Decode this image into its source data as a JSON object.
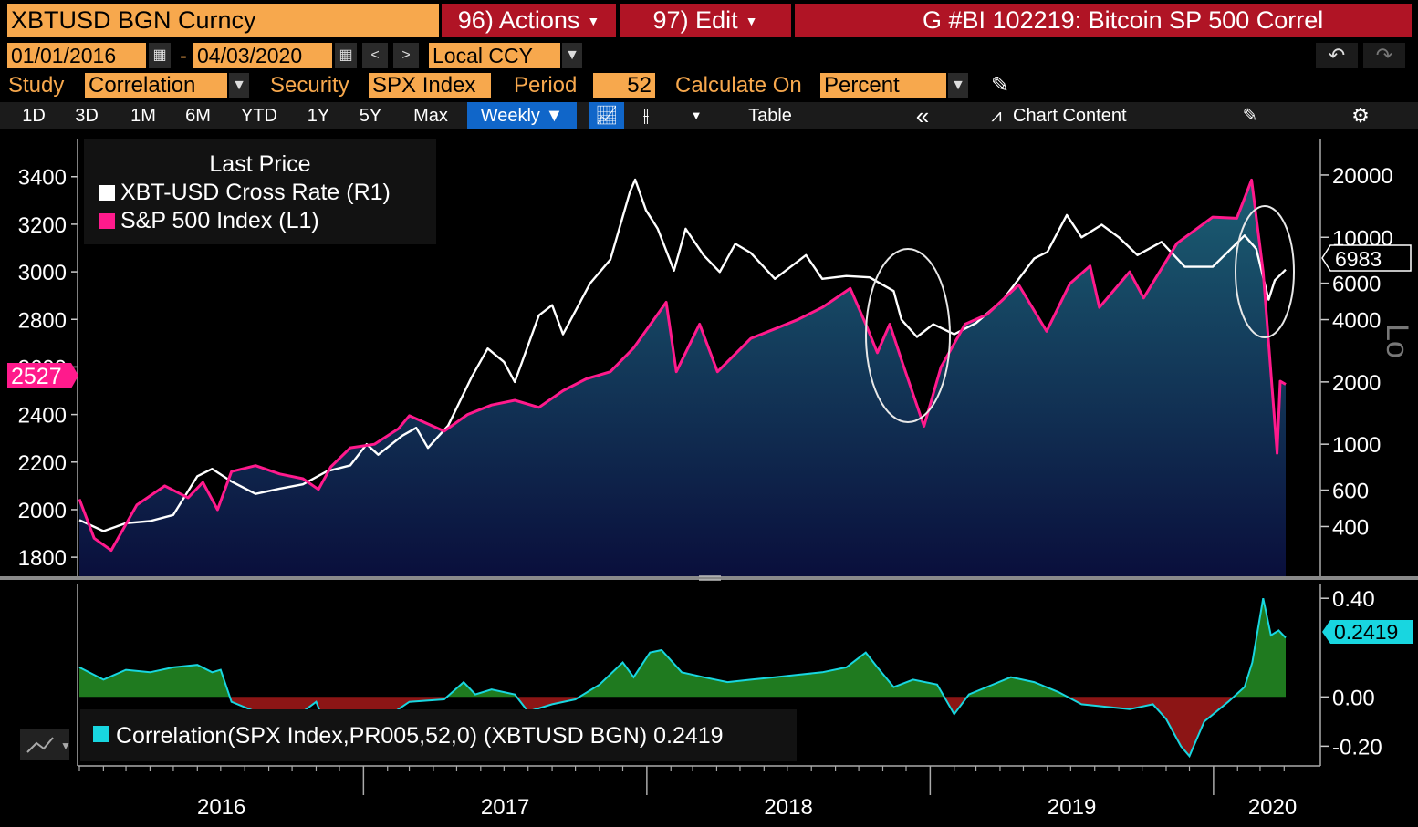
{
  "title_bar": {
    "ticker": "XBTUSD BGN Curncy",
    "actions": "96) Actions",
    "edit": "97) Edit",
    "graph_title": "G #BI 102219: Bitcoin SP 500 Correl"
  },
  "date_bar": {
    "start_date": "01/01/2016",
    "dash": "-",
    "end_date": "04/03/2020",
    "prev": "<",
    "next": ">",
    "currency": "Local CCY",
    "undo": "↶",
    "redo": "↷"
  },
  "study_bar": {
    "study_label": "Study",
    "study_value": "Correlation",
    "security_label": "Security",
    "security_value": "SPX Index",
    "period_label": "Period",
    "period_value": "52",
    "calc_label": "Calculate On",
    "calc_value": "Percent"
  },
  "timeframe_bar": {
    "buttons": [
      "1D",
      "3D",
      "1M",
      "6M",
      "YTD",
      "1Y",
      "5Y",
      "Max"
    ],
    "selected": "Weekly ▼",
    "table": "Table",
    "collapse": "«",
    "chart_content": "Chart Content"
  },
  "colors": {
    "xbt": "#ffffff",
    "spx": "#ff1a8c",
    "corr": "#18d6e0",
    "corr_pos_fill": "#1f7a1f",
    "corr_neg_fill": "#8c1515",
    "accent": "#f7a84d",
    "header_red": "#b01425",
    "area_top": "#1b5e73",
    "area_bottom": "#0a0f3c"
  },
  "chart_data": [
    {
      "type": "line",
      "legend_title": "Last Price",
      "legend_placement": "top-left",
      "x_labels": [
        "2016",
        "2017",
        "2018",
        "2019",
        "2020"
      ],
      "left_axis": {
        "ylim": [
          1720,
          3560
        ],
        "ticks": [
          1800,
          2000,
          2200,
          2400,
          2600,
          2800,
          3000,
          3200,
          3400
        ]
      },
      "right_axis": {
        "scale": "log",
        "ylim": [
          230,
          30000
        ],
        "ticks": [
          400,
          600,
          1000,
          2000,
          4000,
          6000,
          10000,
          20000
        ],
        "side_label": "Lo"
      },
      "series": [
        {
          "name": "XBT-USD Cross Rate  (R1)",
          "axis": "right",
          "last_value": "6983",
          "points": [
            [
              "2016-01-01",
              430
            ],
            [
              "2016-02-01",
              380
            ],
            [
              "2016-03-01",
              415
            ],
            [
              "2016-04-01",
              425
            ],
            [
              "2016-05-01",
              455
            ],
            [
              "2016-06-01",
              700
            ],
            [
              "2016-06-20",
              760
            ],
            [
              "2016-07-15",
              660
            ],
            [
              "2016-08-15",
              575
            ],
            [
              "2016-09-15",
              610
            ],
            [
              "2016-10-15",
              640
            ],
            [
              "2016-11-15",
              740
            ],
            [
              "2016-12-15",
              790
            ],
            [
              "2017-01-05",
              1000
            ],
            [
              "2017-01-20",
              890
            ],
            [
              "2017-02-20",
              1100
            ],
            [
              "2017-03-10",
              1200
            ],
            [
              "2017-03-25",
              960
            ],
            [
              "2017-04-20",
              1230
            ],
            [
              "2017-05-20",
              2100
            ],
            [
              "2017-06-10",
              2900
            ],
            [
              "2017-07-01",
              2500
            ],
            [
              "2017-07-15",
              2000
            ],
            [
              "2017-08-15",
              4200
            ],
            [
              "2017-09-01",
              4700
            ],
            [
              "2017-09-15",
              3400
            ],
            [
              "2017-10-20",
              6000
            ],
            [
              "2017-11-15",
              7800
            ],
            [
              "2017-12-10",
              16500
            ],
            [
              "2017-12-17",
              19000
            ],
            [
              "2017-12-31",
              13500
            ],
            [
              "2018-01-15",
              11000
            ],
            [
              "2018-02-05",
              6900
            ],
            [
              "2018-02-20",
              11000
            ],
            [
              "2018-03-15",
              8200
            ],
            [
              "2018-04-05",
              6800
            ],
            [
              "2018-04-25",
              9300
            ],
            [
              "2018-05-15",
              8400
            ],
            [
              "2018-06-15",
              6300
            ],
            [
              "2018-07-25",
              8200
            ],
            [
              "2018-08-15",
              6300
            ],
            [
              "2018-09-15",
              6500
            ],
            [
              "2018-10-15",
              6400
            ],
            [
              "2018-11-15",
              5500
            ],
            [
              "2018-11-25",
              4000
            ],
            [
              "2018-12-15",
              3300
            ],
            [
              "2019-01-05",
              3800
            ],
            [
              "2019-02-01",
              3400
            ],
            [
              "2019-03-01",
              3850
            ],
            [
              "2019-04-05",
              5000
            ],
            [
              "2019-05-15",
              7900
            ],
            [
              "2019-06-01",
              8500
            ],
            [
              "2019-06-26",
              12800
            ],
            [
              "2019-07-15",
              10000
            ],
            [
              "2019-08-10",
              11500
            ],
            [
              "2019-09-01",
              10000
            ],
            [
              "2019-09-25",
              8200
            ],
            [
              "2019-10-26",
              9500
            ],
            [
              "2019-11-25",
              7200
            ],
            [
              "2019-12-31",
              7200
            ],
            [
              "2020-02-10",
              10200
            ],
            [
              "2020-02-25",
              8800
            ],
            [
              "2020-03-12",
              5000
            ],
            [
              "2020-03-20",
              6200
            ],
            [
              "2020-04-03",
              6983
            ]
          ]
        },
        {
          "name": "S&P 500 Index  (L1)",
          "axis": "left",
          "last_value": "2527",
          "points": [
            [
              "2016-01-01",
              2044
            ],
            [
              "2016-01-20",
              1880
            ],
            [
              "2016-02-11",
              1829
            ],
            [
              "2016-03-15",
              2020
            ],
            [
              "2016-04-20",
              2100
            ],
            [
              "2016-05-20",
              2050
            ],
            [
              "2016-06-08",
              2115
            ],
            [
              "2016-06-27",
              2000
            ],
            [
              "2016-07-15",
              2160
            ],
            [
              "2016-08-15",
              2185
            ],
            [
              "2016-09-15",
              2150
            ],
            [
              "2016-10-15",
              2130
            ],
            [
              "2016-11-04",
              2085
            ],
            [
              "2016-11-20",
              2180
            ],
            [
              "2016-12-15",
              2260
            ],
            [
              "2017-01-15",
              2275
            ],
            [
              "2017-02-15",
              2340
            ],
            [
              "2017-03-01",
              2395
            ],
            [
              "2017-04-15",
              2330
            ],
            [
              "2017-05-15",
              2400
            ],
            [
              "2017-06-15",
              2440
            ],
            [
              "2017-07-15",
              2460
            ],
            [
              "2017-08-15",
              2430
            ],
            [
              "2017-09-15",
              2500
            ],
            [
              "2017-10-15",
              2550
            ],
            [
              "2017-11-15",
              2580
            ],
            [
              "2017-12-15",
              2680
            ],
            [
              "2018-01-26",
              2872
            ],
            [
              "2018-02-08",
              2580
            ],
            [
              "2018-03-10",
              2780
            ],
            [
              "2018-04-02",
              2580
            ],
            [
              "2018-05-15",
              2720
            ],
            [
              "2018-06-15",
              2760
            ],
            [
              "2018-07-15",
              2800
            ],
            [
              "2018-08-15",
              2850
            ],
            [
              "2018-09-20",
              2930
            ],
            [
              "2018-10-10",
              2780
            ],
            [
              "2018-10-25",
              2660
            ],
            [
              "2018-11-10",
              2780
            ],
            [
              "2018-11-25",
              2630
            ],
            [
              "2018-12-24",
              2351
            ],
            [
              "2019-01-15",
              2600
            ],
            [
              "2019-02-15",
              2780
            ],
            [
              "2019-03-15",
              2820
            ],
            [
              "2019-04-25",
              2945
            ],
            [
              "2019-05-31",
              2750
            ],
            [
              "2019-06-30",
              2950
            ],
            [
              "2019-07-26",
              3025
            ],
            [
              "2019-08-07",
              2850
            ],
            [
              "2019-09-15",
              3000
            ],
            [
              "2019-10-03",
              2890
            ],
            [
              "2019-11-15",
              3120
            ],
            [
              "2019-12-31",
              3230
            ],
            [
              "2020-01-31",
              3225
            ],
            [
              "2020-02-19",
              3386
            ],
            [
              "2020-03-05",
              3000
            ],
            [
              "2020-03-23",
              2237
            ],
            [
              "2020-03-27",
              2540
            ],
            [
              "2020-04-03",
              2527
            ]
          ]
        }
      ]
    },
    {
      "type": "area",
      "legend_placement": "bottom-left",
      "axis": {
        "ylim": [
          -0.28,
          0.46
        ],
        "ticks": [
          0.4,
          0.0,
          -0.2
        ]
      },
      "series": [
        {
          "name": "Correlation(SPX Index,PR005,52,0) (XBTUSD BGN) 0.2419",
          "last_value": "0.2419",
          "points": [
            [
              "2016-01-01",
              0.12
            ],
            [
              "2016-02-01",
              0.07
            ],
            [
              "2016-03-01",
              0.11
            ],
            [
              "2016-04-01",
              0.1
            ],
            [
              "2016-05-01",
              0.12
            ],
            [
              "2016-06-01",
              0.13
            ],
            [
              "2016-06-20",
              0.1
            ],
            [
              "2016-07-01",
              0.11
            ],
            [
              "2016-07-15",
              -0.02
            ],
            [
              "2016-08-15",
              -0.06
            ],
            [
              "2016-09-15",
              -0.07
            ],
            [
              "2016-10-15",
              -0.06
            ],
            [
              "2016-11-01",
              -0.02
            ],
            [
              "2016-11-15",
              -0.13
            ],
            [
              "2016-12-15",
              -0.09
            ],
            [
              "2017-01-10",
              -0.12
            ],
            [
              "2017-02-01",
              -0.08
            ],
            [
              "2017-03-01",
              -0.02
            ],
            [
              "2017-04-15",
              -0.01
            ],
            [
              "2017-05-10",
              0.06
            ],
            [
              "2017-05-25",
              0.01
            ],
            [
              "2017-06-15",
              0.03
            ],
            [
              "2017-07-15",
              0.01
            ],
            [
              "2017-08-01",
              -0.06
            ],
            [
              "2017-09-01",
              -0.03
            ],
            [
              "2017-10-01",
              -0.01
            ],
            [
              "2017-11-01",
              0.05
            ],
            [
              "2017-12-01",
              0.14
            ],
            [
              "2017-12-15",
              0.08
            ],
            [
              "2018-01-05",
              0.18
            ],
            [
              "2018-01-20",
              0.19
            ],
            [
              "2018-02-15",
              0.1
            ],
            [
              "2018-03-15",
              0.08
            ],
            [
              "2018-04-15",
              0.06
            ],
            [
              "2018-05-15",
              0.07
            ],
            [
              "2018-06-15",
              0.08
            ],
            [
              "2018-07-15",
              0.09
            ],
            [
              "2018-08-15",
              0.1
            ],
            [
              "2018-09-15",
              0.12
            ],
            [
              "2018-10-10",
              0.18
            ],
            [
              "2018-10-25",
              0.12
            ],
            [
              "2018-11-15",
              0.04
            ],
            [
              "2018-12-10",
              0.07
            ],
            [
              "2019-01-10",
              0.05
            ],
            [
              "2019-02-01",
              -0.07
            ],
            [
              "2019-02-20",
              0.01
            ],
            [
              "2019-03-15",
              0.04
            ],
            [
              "2019-04-15",
              0.08
            ],
            [
              "2019-05-15",
              0.06
            ],
            [
              "2019-06-15",
              0.02
            ],
            [
              "2019-07-15",
              -0.03
            ],
            [
              "2019-08-15",
              -0.04
            ],
            [
              "2019-09-15",
              -0.05
            ],
            [
              "2019-10-15",
              -0.03
            ],
            [
              "2019-11-01",
              -0.09
            ],
            [
              "2019-11-20",
              -0.2
            ],
            [
              "2019-12-01",
              -0.24
            ],
            [
              "2019-12-20",
              -0.1
            ],
            [
              "2020-01-20",
              -0.02
            ],
            [
              "2020-02-10",
              0.04
            ],
            [
              "2020-02-20",
              0.14
            ],
            [
              "2020-03-05",
              0.4
            ],
            [
              "2020-03-15",
              0.25
            ],
            [
              "2020-03-25",
              0.27
            ],
            [
              "2020-04-03",
              0.24
            ]
          ]
        }
      ]
    }
  ]
}
